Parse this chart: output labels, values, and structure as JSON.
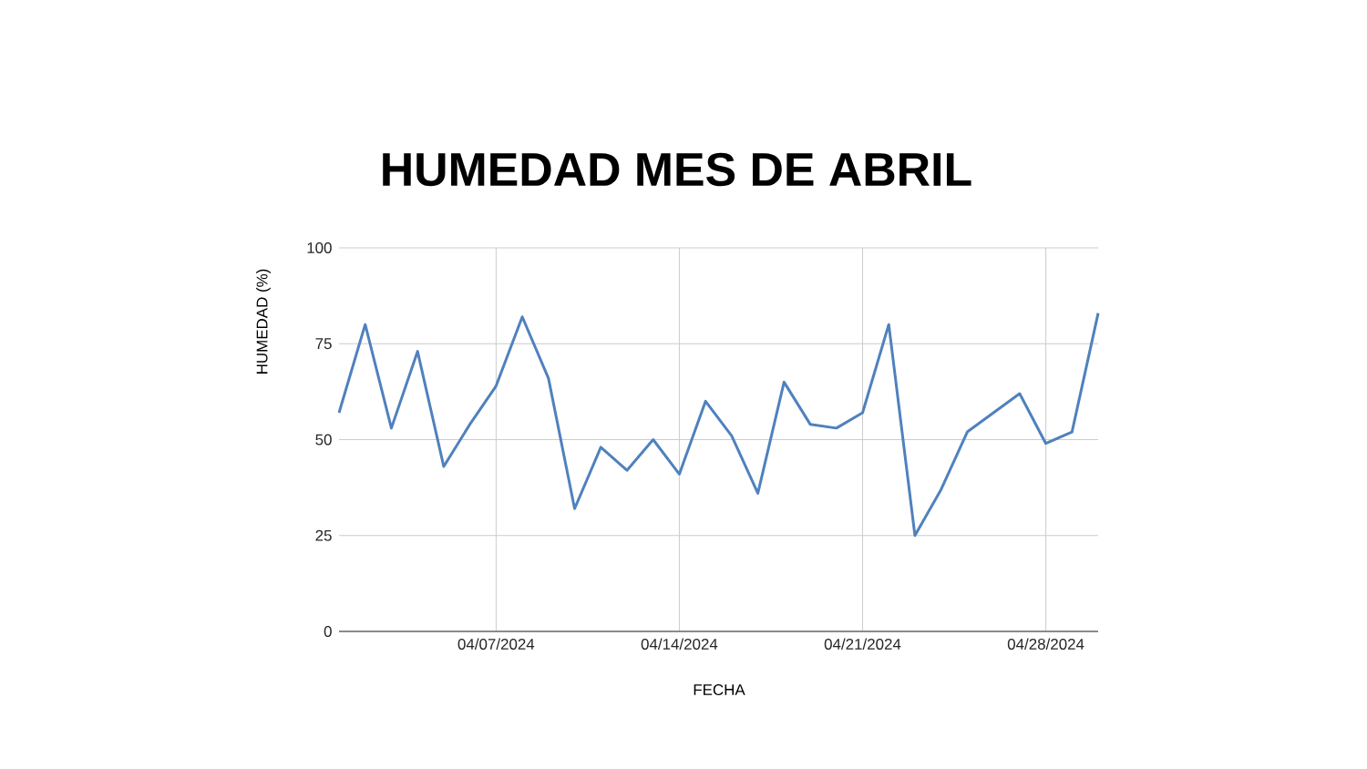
{
  "chart_data": {
    "type": "line",
    "title": "HUMEDAD MES DE ABRIL",
    "xlabel": "FECHA",
    "ylabel": "HUMEDAD (%)",
    "x": [
      "2024-04-01",
      "2024-04-02",
      "2024-04-03",
      "2024-04-04",
      "2024-04-05",
      "2024-04-06",
      "2024-04-07",
      "2024-04-08",
      "2024-04-09",
      "2024-04-10",
      "2024-04-11",
      "2024-04-12",
      "2024-04-13",
      "2024-04-14",
      "2024-04-15",
      "2024-04-16",
      "2024-04-17",
      "2024-04-18",
      "2024-04-19",
      "2024-04-20",
      "2024-04-21",
      "2024-04-22",
      "2024-04-23",
      "2024-04-24",
      "2024-04-25",
      "2024-04-26",
      "2024-04-27",
      "2024-04-28",
      "2024-04-29",
      "2024-04-30"
    ],
    "series": [
      {
        "color": "#4f81bd",
        "values": [
          57,
          80,
          53,
          73,
          43,
          54,
          64,
          82,
          66,
          32,
          48,
          42,
          50,
          41,
          60,
          51,
          36,
          65,
          54,
          53,
          57,
          80,
          25,
          37,
          52,
          57,
          62,
          49,
          52,
          83
        ]
      }
    ],
    "xlim": [
      "2024-04-01",
      "2024-04-30"
    ],
    "xticks": [
      {
        "value": "2024-04-07",
        "label": "04/07/2024"
      },
      {
        "value": "2024-04-14",
        "label": "04/14/2024"
      },
      {
        "value": "2024-04-21",
        "label": "04/21/2024"
      },
      {
        "value": "2024-04-28",
        "label": "04/28/2024"
      }
    ],
    "ylim": [
      0,
      100
    ],
    "yticks": [
      0,
      25,
      50,
      75,
      100
    ],
    "grid": true
  }
}
